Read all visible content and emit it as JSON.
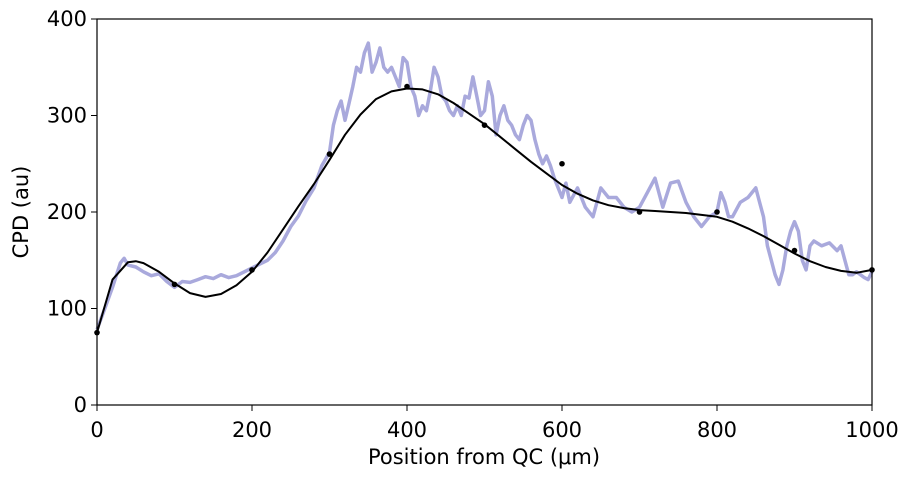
{
  "chart_data": {
    "type": "line",
    "title": "",
    "xlabel": "Position from QC (μm)",
    "ylabel": "CPD (au)",
    "xlim": [
      0,
      1000
    ],
    "ylim": [
      0,
      400
    ],
    "x_ticks": [
      0,
      200,
      400,
      600,
      800,
      1000
    ],
    "y_ticks": [
      0,
      100,
      200,
      300,
      400
    ],
    "grid": false,
    "legend": "none",
    "series": [
      {
        "kind": "noisy-measurement-line",
        "color": "#a9a9dc",
        "points": [
          [
            0,
            78
          ],
          [
            10,
            100
          ],
          [
            20,
            122
          ],
          [
            30,
            147
          ],
          [
            35,
            152
          ],
          [
            40,
            145
          ],
          [
            50,
            143
          ],
          [
            60,
            138
          ],
          [
            70,
            134
          ],
          [
            80,
            136
          ],
          [
            90,
            128
          ],
          [
            100,
            122
          ],
          [
            110,
            128
          ],
          [
            120,
            127
          ],
          [
            130,
            130
          ],
          [
            140,
            133
          ],
          [
            150,
            131
          ],
          [
            160,
            135
          ],
          [
            170,
            132
          ],
          [
            180,
            134
          ],
          [
            190,
            138
          ],
          [
            200,
            142
          ],
          [
            210,
            146
          ],
          [
            220,
            150
          ],
          [
            230,
            158
          ],
          [
            240,
            170
          ],
          [
            250,
            185
          ],
          [
            260,
            196
          ],
          [
            270,
            212
          ],
          [
            280,
            225
          ],
          [
            290,
            248
          ],
          [
            300,
            262
          ],
          [
            305,
            290
          ],
          [
            310,
            305
          ],
          [
            315,
            315
          ],
          [
            320,
            295
          ],
          [
            325,
            312
          ],
          [
            330,
            330
          ],
          [
            335,
            350
          ],
          [
            340,
            345
          ],
          [
            345,
            365
          ],
          [
            350,
            375
          ],
          [
            355,
            345
          ],
          [
            360,
            355
          ],
          [
            365,
            370
          ],
          [
            370,
            350
          ],
          [
            375,
            345
          ],
          [
            380,
            350
          ],
          [
            385,
            340
          ],
          [
            390,
            330
          ],
          [
            395,
            360
          ],
          [
            400,
            355
          ],
          [
            405,
            330
          ],
          [
            410,
            320
          ],
          [
            415,
            300
          ],
          [
            420,
            310
          ],
          [
            425,
            305
          ],
          [
            430,
            325
          ],
          [
            435,
            350
          ],
          [
            440,
            340
          ],
          [
            445,
            320
          ],
          [
            450,
            315
          ],
          [
            455,
            305
          ],
          [
            460,
            300
          ],
          [
            465,
            310
          ],
          [
            470,
            300
          ],
          [
            475,
            320
          ],
          [
            480,
            318
          ],
          [
            485,
            340
          ],
          [
            490,
            320
          ],
          [
            495,
            300
          ],
          [
            500,
            305
          ],
          [
            505,
            335
          ],
          [
            510,
            320
          ],
          [
            515,
            280
          ],
          [
            520,
            300
          ],
          [
            525,
            310
          ],
          [
            530,
            295
          ],
          [
            535,
            290
          ],
          [
            540,
            280
          ],
          [
            545,
            275
          ],
          [
            550,
            290
          ],
          [
            555,
            300
          ],
          [
            560,
            295
          ],
          [
            565,
            275
          ],
          [
            570,
            260
          ],
          [
            575,
            250
          ],
          [
            580,
            258
          ],
          [
            585,
            248
          ],
          [
            590,
            235
          ],
          [
            600,
            215
          ],
          [
            605,
            230
          ],
          [
            610,
            210
          ],
          [
            620,
            225
          ],
          [
            630,
            205
          ],
          [
            640,
            195
          ],
          [
            650,
            225
          ],
          [
            655,
            220
          ],
          [
            660,
            215
          ],
          [
            670,
            215
          ],
          [
            680,
            205
          ],
          [
            690,
            200
          ],
          [
            700,
            205
          ],
          [
            710,
            220
          ],
          [
            720,
            235
          ],
          [
            730,
            205
          ],
          [
            740,
            230
          ],
          [
            750,
            232
          ],
          [
            760,
            210
          ],
          [
            770,
            195
          ],
          [
            780,
            185
          ],
          [
            790,
            195
          ],
          [
            800,
            200
          ],
          [
            805,
            220
          ],
          [
            810,
            210
          ],
          [
            815,
            195
          ],
          [
            820,
            195
          ],
          [
            830,
            210
          ],
          [
            840,
            215
          ],
          [
            850,
            225
          ],
          [
            855,
            210
          ],
          [
            860,
            195
          ],
          [
            865,
            165
          ],
          [
            870,
            150
          ],
          [
            875,
            135
          ],
          [
            880,
            125
          ],
          [
            885,
            140
          ],
          [
            890,
            165
          ],
          [
            895,
            180
          ],
          [
            900,
            190
          ],
          [
            905,
            180
          ],
          [
            910,
            150
          ],
          [
            915,
            140
          ],
          [
            920,
            165
          ],
          [
            925,
            170
          ],
          [
            935,
            165
          ],
          [
            945,
            168
          ],
          [
            955,
            160
          ],
          [
            960,
            165
          ],
          [
            965,
            150
          ],
          [
            970,
            135
          ],
          [
            975,
            135
          ],
          [
            980,
            138
          ],
          [
            985,
            135
          ],
          [
            990,
            132
          ],
          [
            995,
            130
          ],
          [
            1000,
            138
          ]
        ]
      },
      {
        "kind": "smooth-fit",
        "color": "#000000",
        "x": [
          0,
          20,
          40,
          50,
          60,
          80,
          100,
          120,
          140,
          160,
          180,
          200,
          220,
          240,
          260,
          280,
          300,
          320,
          340,
          360,
          380,
          400,
          420,
          440,
          460,
          480,
          500,
          520,
          540,
          560,
          580,
          600,
          620,
          640,
          660,
          680,
          700,
          720,
          740,
          760,
          780,
          800,
          820,
          840,
          860,
          880,
          900,
          920,
          940,
          960,
          980,
          1000
        ],
        "y": [
          75,
          130,
          148,
          149,
          147,
          138,
          126,
          116,
          112,
          115,
          124,
          138,
          158,
          182,
          206,
          229,
          254,
          280,
          301,
          317,
          325,
          328,
          327,
          322,
          313,
          302,
          291,
          278,
          265,
          252,
          240,
          228,
          219,
          212,
          207,
          204,
          202,
          201,
          200,
          199,
          197,
          195,
          190,
          183,
          175,
          166,
          157,
          149,
          143,
          139,
          137,
          140
        ]
      }
    ],
    "markers": {
      "color": "#000000",
      "x": [
        0,
        100,
        200,
        300,
        400,
        500,
        600,
        700,
        800,
        900,
        1000
      ],
      "y": [
        75,
        125,
        140,
        260,
        330,
        290,
        250,
        200,
        200,
        160,
        140
      ]
    }
  }
}
